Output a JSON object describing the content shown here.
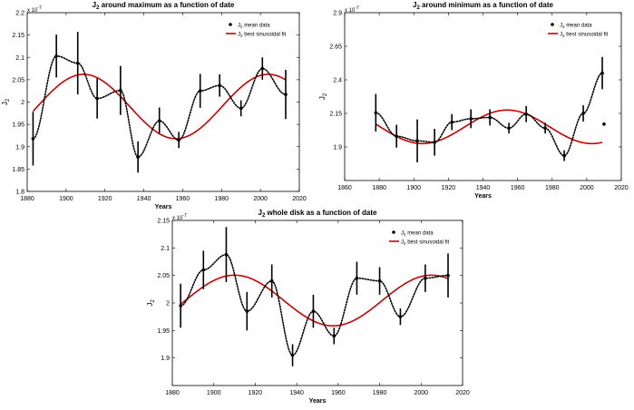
{
  "chart_data": [
    {
      "type": "scatter",
      "title_main": "J",
      "title_sub": "2",
      "title_rest": " around maximum as a function of date",
      "xlabel": "Years",
      "ylabel_main": "J",
      "ylabel_sub": "2",
      "exponent_prefix": "x 10",
      "exponent": "-7",
      "xlim": [
        1880,
        2020
      ],
      "ylim": [
        1.8,
        2.2
      ],
      "xticks": [
        "1880",
        "1900",
        "1920",
        "1940",
        "1960",
        "1980",
        "2000",
        "2020"
      ],
      "yticks": [
        "1.8",
        "1.85",
        "1.9",
        "1.95",
        "2",
        "2.05",
        "2.1",
        "2.15",
        "2.2"
      ],
      "legend": {
        "location": "top-right",
        "mean_label": "mean data",
        "fit_label": "best sinusoidal fit",
        "label_prefix": "J",
        "label_sub": "2"
      },
      "mean_data": [
        {
          "x": 1883,
          "y": 1.918,
          "err": 0.06
        },
        {
          "x": 1895,
          "y": 2.103,
          "err": 0.048
        },
        {
          "x": 1906,
          "y": 2.087,
          "err": 0.07
        },
        {
          "x": 1916,
          "y": 2.008,
          "err": 0.045
        },
        {
          "x": 1928,
          "y": 2.026,
          "err": 0.055
        },
        {
          "x": 1937,
          "y": 1.877,
          "err": 0.035
        },
        {
          "x": 1948,
          "y": 1.958,
          "err": 0.03
        },
        {
          "x": 1958,
          "y": 1.915,
          "err": 0.018
        },
        {
          "x": 1969,
          "y": 2.025,
          "err": 0.038
        },
        {
          "x": 1979,
          "y": 2.037,
          "err": 0.025
        },
        {
          "x": 1990,
          "y": 1.986,
          "err": 0.018
        },
        {
          "x": 2001,
          "y": 2.075,
          "err": 0.025
        },
        {
          "x": 2013,
          "y": 2.017,
          "err": 0.055
        }
      ],
      "fit": {
        "mean": 1.99,
        "amplitude": 0.072,
        "period": 95,
        "peak_year": 1909
      }
    },
    {
      "type": "scatter",
      "title_main": "J",
      "title_sub": "2",
      "title_rest": " around minimum as a function of date",
      "xlabel": "Years",
      "ylabel_main": "J",
      "ylabel_sub": "2",
      "exponent_prefix": "x 10",
      "exponent": "-7",
      "xlim": [
        1860,
        2020
      ],
      "ylim": [
        1.65,
        2.9
      ],
      "xticks": [
        "1860",
        "1880",
        "1900",
        "1920",
        "1940",
        "1960",
        "1980",
        "2000",
        "2020"
      ],
      "yticks": [
        "1.9",
        "2.15",
        "2.4",
        "2.65",
        "2.9"
      ],
      "legend": {
        "location": "top-right",
        "mean_label": "mean data",
        "fit_label": "best sinusoidal fit",
        "label_prefix": "J",
        "label_sub": "2"
      },
      "mean_data": [
        {
          "x": 1878,
          "y": 2.155,
          "err": 0.14
        },
        {
          "x": 1890,
          "y": 1.98,
          "err": 0.085
        },
        {
          "x": 1902,
          "y": 1.945,
          "err": 0.16
        },
        {
          "x": 1912,
          "y": 1.935,
          "err": 0.1
        },
        {
          "x": 1922,
          "y": 2.085,
          "err": 0.06
        },
        {
          "x": 1933,
          "y": 2.11,
          "err": 0.07
        },
        {
          "x": 1944,
          "y": 2.12,
          "err": 0.06
        },
        {
          "x": 1955,
          "y": 2.04,
          "err": 0.04
        },
        {
          "x": 1965,
          "y": 2.145,
          "err": 0.06
        },
        {
          "x": 1976,
          "y": 2.04,
          "err": 0.04
        },
        {
          "x": 1987,
          "y": 1.835,
          "err": 0.04
        },
        {
          "x": 1998,
          "y": 2.15,
          "err": 0.06
        },
        {
          "x": 2009,
          "y": 2.45,
          "err": 0.12
        },
        {
          "x": 2010,
          "y": 2.07,
          "err": 0
        }
      ],
      "fit": {
        "mean": 2.05,
        "amplitude": 0.125,
        "period": 98,
        "peak_year": 1954
      }
    },
    {
      "type": "scatter",
      "title_main": "J",
      "title_sub": "2",
      "title_rest": " whole disk as a function of date",
      "xlabel": "Years",
      "ylabel_main": "J",
      "ylabel_sub": "2",
      "exponent_prefix": "x 10",
      "exponent": "-7",
      "xlim": [
        1880,
        2020
      ],
      "ylim": [
        1.85,
        2.15
      ],
      "xticks": [
        "1880",
        "1900",
        "1920",
        "1940",
        "1960",
        "1980",
        "2000",
        "2020"
      ],
      "yticks": [
        "1.9",
        "1.95",
        "2",
        "2.05",
        "2.1",
        "2.15"
      ],
      "legend": {
        "location": "top-right",
        "mean_label": "mean data",
        "fit_label": "best sinusoidal fit",
        "label_prefix": "J",
        "label_sub": "2"
      },
      "mean_data": [
        {
          "x": 1884,
          "y": 1.995,
          "err": 0.04
        },
        {
          "x": 1895,
          "y": 2.06,
          "err": 0.035
        },
        {
          "x": 1906,
          "y": 2.088,
          "err": 0.05
        },
        {
          "x": 1916,
          "y": 1.985,
          "err": 0.035
        },
        {
          "x": 1928,
          "y": 2.04,
          "err": 0.03
        },
        {
          "x": 1938,
          "y": 1.905,
          "err": 0.02
        },
        {
          "x": 1948,
          "y": 1.985,
          "err": 0.03
        },
        {
          "x": 1958,
          "y": 1.94,
          "err": 0.015
        },
        {
          "x": 1969,
          "y": 2.045,
          "err": 0.03
        },
        {
          "x": 1980,
          "y": 2.04,
          "err": 0.025
        },
        {
          "x": 1990,
          "y": 1.975,
          "err": 0.015
        },
        {
          "x": 2002,
          "y": 2.045,
          "err": 0.025
        },
        {
          "x": 2013,
          "y": 2.05,
          "err": 0.04
        }
      ],
      "fit": {
        "mean": 2.0045,
        "amplitude": 0.046,
        "period": 95,
        "peak_year": 1910
      }
    }
  ]
}
